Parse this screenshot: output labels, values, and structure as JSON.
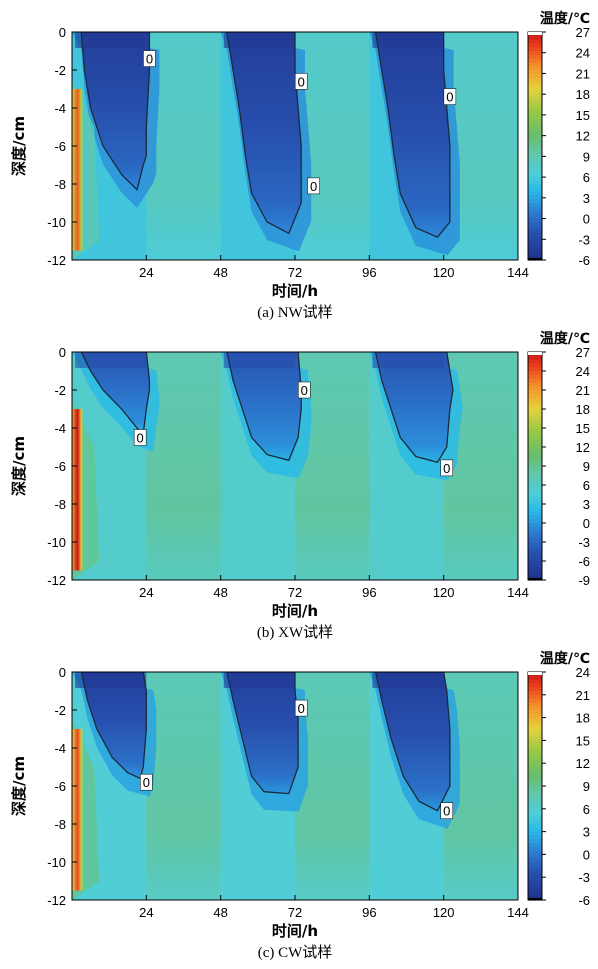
{
  "chart_data": [
    {
      "type": "heatmap",
      "caption": "(a) NW试样",
      "xlabel": "时间/h",
      "ylabel": "深度/cm",
      "xlim": [
        0,
        144
      ],
      "ylim": [
        -12,
        0
      ],
      "xticks": [
        24,
        48,
        72,
        96,
        120,
        144
      ],
      "yticks": [
        0,
        -2,
        -4,
        -6,
        -8,
        -10,
        -12
      ],
      "colorbar": {
        "title": "温度/℃",
        "min": -6,
        "max": 27,
        "ticks": [
          27,
          24,
          21,
          18,
          15,
          12,
          9,
          6,
          3,
          0,
          -3,
          -6
        ]
      },
      "freeze_zones": [
        {
          "start": 0,
          "end": 24,
          "front": [
            [
              3,
              0
            ],
            [
              4,
              -2
            ],
            [
              6,
              -4
            ],
            [
              10,
              -6
            ],
            [
              16,
              -7.5
            ],
            [
              21,
              -8.3
            ],
            [
              23,
              -7
            ],
            [
              24,
              -6.5
            ],
            [
              24,
              -5
            ],
            [
              25,
              -2
            ],
            [
              25,
              0
            ]
          ]
        },
        {
          "start": 48,
          "end": 72,
          "front": [
            [
              50,
              0
            ],
            [
              52,
              -2
            ],
            [
              54,
              -4
            ],
            [
              56,
              -6.5
            ],
            [
              58,
              -8.5
            ],
            [
              63,
              -10
            ],
            [
              70,
              -10.6
            ],
            [
              74,
              -9
            ],
            [
              74,
              -6
            ],
            [
              73,
              -4
            ],
            [
              72,
              -2
            ],
            [
              72,
              0
            ]
          ]
        },
        {
          "start": 96,
          "end": 120,
          "front": [
            [
              98,
              0
            ],
            [
              100,
              -2
            ],
            [
              102,
              -4
            ],
            [
              104,
              -6.5
            ],
            [
              106,
              -8.5
            ],
            [
              111,
              -10.3
            ],
            [
              118,
              -10.8
            ],
            [
              122,
              -10
            ],
            [
              122,
              -6
            ],
            [
              121,
              -4
            ],
            [
              120,
              -2
            ],
            [
              120,
              0
            ]
          ]
        }
      ],
      "warm_zone": {
        "x": [
          0,
          4
        ],
        "max_temp": 24
      },
      "contour_labels": [
        {
          "text": "0",
          "x": 25,
          "y": -1.4
        },
        {
          "text": "0",
          "x": 74,
          "y": -2.6
        },
        {
          "text": "0",
          "x": 78,
          "y": -8.1
        },
        {
          "text": "0",
          "x": 122,
          "y": -3.4
        }
      ]
    },
    {
      "type": "heatmap",
      "caption": "(b) XW试样",
      "xlabel": "时间/h",
      "ylabel": "深度/cm",
      "xlim": [
        0,
        144
      ],
      "ylim": [
        -12,
        0
      ],
      "xticks": [
        24,
        48,
        72,
        96,
        120,
        144
      ],
      "yticks": [
        0,
        -2,
        -4,
        -6,
        -8,
        -10,
        -12
      ],
      "colorbar": {
        "title": "温度/℃",
        "min": -9,
        "max": 27,
        "ticks": [
          27,
          24,
          21,
          18,
          15,
          12,
          9,
          6,
          3,
          0,
          -3,
          -6,
          -9
        ]
      },
      "freeze_zones": [
        {
          "start": 0,
          "end": 24,
          "front": [
            [
              3,
              0
            ],
            [
              6,
              -1
            ],
            [
              10,
              -2
            ],
            [
              16,
              -3
            ],
            [
              21,
              -4
            ],
            [
              23,
              -4.3
            ],
            [
              24,
              -3
            ],
            [
              25,
              -2
            ],
            [
              25,
              -1.5
            ],
            [
              24,
              0
            ]
          ]
        },
        {
          "start": 48,
          "end": 72,
          "front": [
            [
              50,
              0
            ],
            [
              52,
              -1.5
            ],
            [
              55,
              -3
            ],
            [
              58,
              -4.5
            ],
            [
              63,
              -5.4
            ],
            [
              70,
              -5.7
            ],
            [
              73,
              -4.5
            ],
            [
              74,
              -3
            ],
            [
              74,
              -2
            ],
            [
              73,
              0
            ]
          ]
        },
        {
          "start": 96,
          "end": 120,
          "front": [
            [
              98,
              0
            ],
            [
              100,
              -1.5
            ],
            [
              103,
              -3
            ],
            [
              106,
              -4.5
            ],
            [
              111,
              -5.5
            ],
            [
              118,
              -5.8
            ],
            [
              121,
              -5
            ],
            [
              122,
              -3
            ],
            [
              123,
              -2
            ],
            [
              121,
              0
            ]
          ]
        }
      ],
      "warm_zone": {
        "x": [
          0,
          4
        ],
        "max_temp": 27
      },
      "contour_labels": [
        {
          "text": "0",
          "x": 22,
          "y": -4.5
        },
        {
          "text": "0",
          "x": 75,
          "y": -2.0
        },
        {
          "text": "0",
          "x": 121,
          "y": -6.1
        }
      ]
    },
    {
      "type": "heatmap",
      "caption": "(c) CW试样",
      "xlabel": "时间/h",
      "ylabel": "深度/cm",
      "xlim": [
        0,
        144
      ],
      "ylim": [
        -12,
        0
      ],
      "xticks": [
        24,
        48,
        72,
        96,
        120,
        144
      ],
      "yticks": [
        0,
        -2,
        -4,
        -6,
        -8,
        -10,
        -12
      ],
      "colorbar": {
        "title": "温度/℃",
        "min": -6,
        "max": 24,
        "ticks": [
          24,
          21,
          18,
          15,
          12,
          9,
          6,
          3,
          0,
          -3,
          -6
        ]
      },
      "freeze_zones": [
        {
          "start": 0,
          "end": 24,
          "front": [
            [
              3,
              0
            ],
            [
              5,
              -1.5
            ],
            [
              8,
              -3
            ],
            [
              13,
              -4.5
            ],
            [
              18,
              -5.3
            ],
            [
              22,
              -5.6
            ],
            [
              23,
              -5
            ],
            [
              24,
              -3
            ],
            [
              24,
              -1
            ],
            [
              23,
              0
            ]
          ]
        },
        {
          "start": 48,
          "end": 72,
          "front": [
            [
              50,
              0
            ],
            [
              52,
              -1.5
            ],
            [
              55,
              -3.5
            ],
            [
              58,
              -5.5
            ],
            [
              62,
              -6.3
            ],
            [
              70,
              -6.4
            ],
            [
              73,
              -5
            ],
            [
              73,
              -2.5
            ],
            [
              72,
              -1
            ],
            [
              72,
              0
            ]
          ]
        },
        {
          "start": 96,
          "end": 120,
          "front": [
            [
              98,
              0
            ],
            [
              100,
              -1.5
            ],
            [
              103,
              -3.5
            ],
            [
              107,
              -5.5
            ],
            [
              112,
              -6.8
            ],
            [
              118,
              -7.3
            ],
            [
              122,
              -6
            ],
            [
              122,
              -3
            ],
            [
              121,
              -1
            ],
            [
              120,
              0
            ]
          ]
        }
      ],
      "warm_zone": {
        "x": [
          0,
          4
        ],
        "max_temp": 22
      },
      "contour_labels": [
        {
          "text": "0",
          "x": 24,
          "y": -5.8
        },
        {
          "text": "0",
          "x": 74,
          "y": -1.9
        },
        {
          "text": "0",
          "x": 121,
          "y": -7.3
        }
      ]
    }
  ]
}
